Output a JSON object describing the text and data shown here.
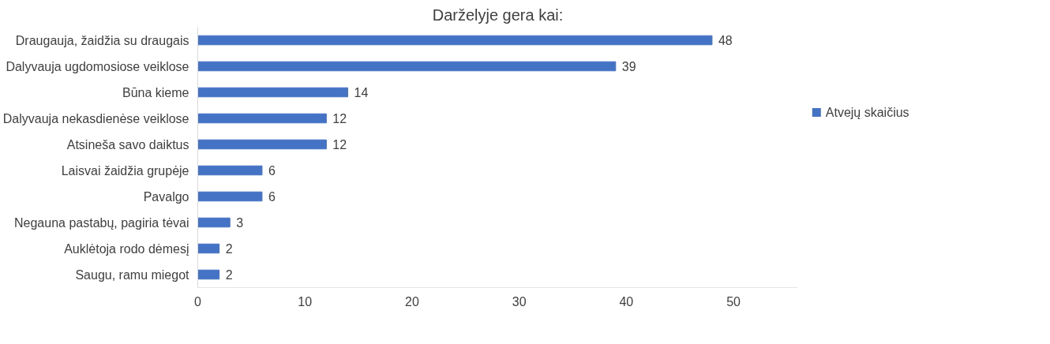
{
  "chart_data": {
    "type": "bar",
    "orientation": "horizontal",
    "title": "Darželyje gera kai:",
    "categories": [
      "Draugauja, žaidžia su draugais",
      "Dalyvauja ugdomosiose veiklose",
      "Būna kieme",
      "Dalyvauja nekasdienėse veiklose",
      "Atsineša savo daiktus",
      "Laisvai žaidžia grupėje",
      "Pavalgo",
      "Negauna pastabų, pagiria tėvai",
      "Auklėtoja rodo dėmesį",
      "Saugu, ramu miegot"
    ],
    "series": [
      {
        "name": "Atvejų skaičius",
        "color": "#4472c4",
        "values": [
          48,
          39,
          14,
          12,
          12,
          6,
          6,
          3,
          2,
          2
        ]
      }
    ],
    "xlim": [
      0,
      56
    ],
    "xticks": [
      0,
      10,
      20,
      30,
      40,
      50
    ],
    "data_labels": true,
    "grid": false,
    "legend": "right"
  }
}
